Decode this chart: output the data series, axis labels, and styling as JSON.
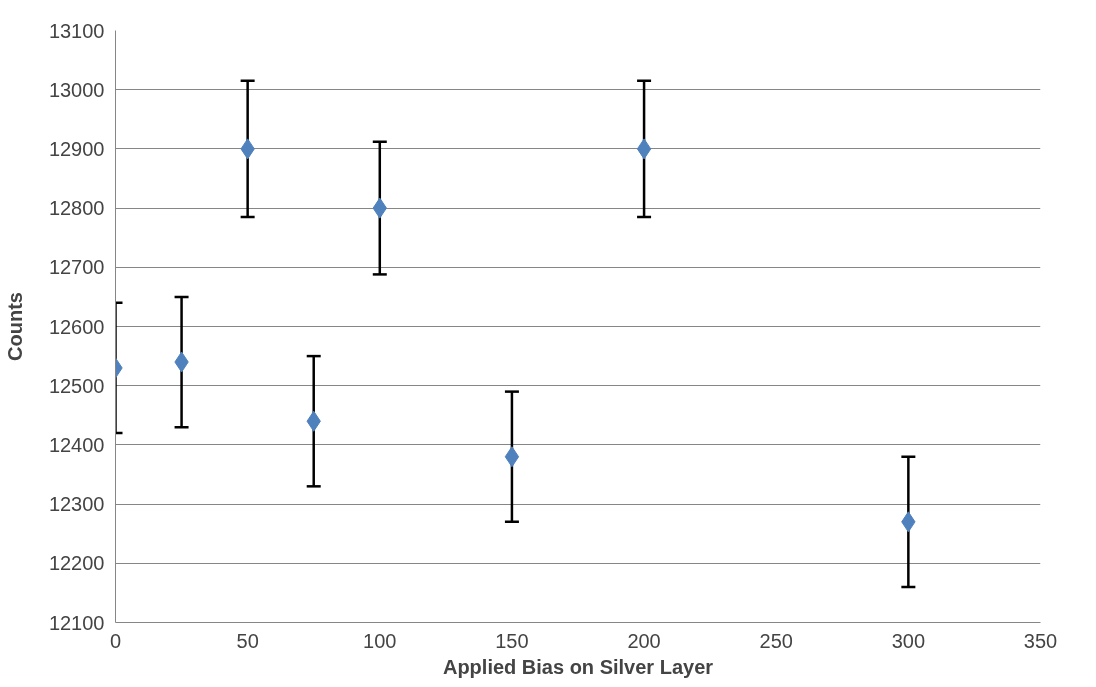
{
  "chart_data": {
    "type": "scatter",
    "xlabel": "Applied Bias on Silver Layer",
    "ylabel": "Counts",
    "x": [
      0,
      25,
      50,
      75,
      100,
      150,
      200,
      300
    ],
    "series": [
      {
        "color": "#4f81bd",
        "values": [
          12530,
          12540,
          12900,
          12440,
          12800,
          12380,
          12900,
          12270
        ],
        "errors": [
          110,
          110,
          115,
          110,
          112,
          110,
          115,
          110
        ]
      }
    ],
    "xlim": [
      0,
      350
    ],
    "xticks": [
      0,
      50,
      100,
      150,
      200,
      250,
      300,
      350
    ],
    "ylim": [
      12100,
      13100
    ],
    "yticks": [
      12100,
      12200,
      12300,
      12400,
      12500,
      12600,
      12700,
      12800,
      12900,
      13000,
      13100
    ],
    "grid": "y",
    "marker": "diamond"
  }
}
